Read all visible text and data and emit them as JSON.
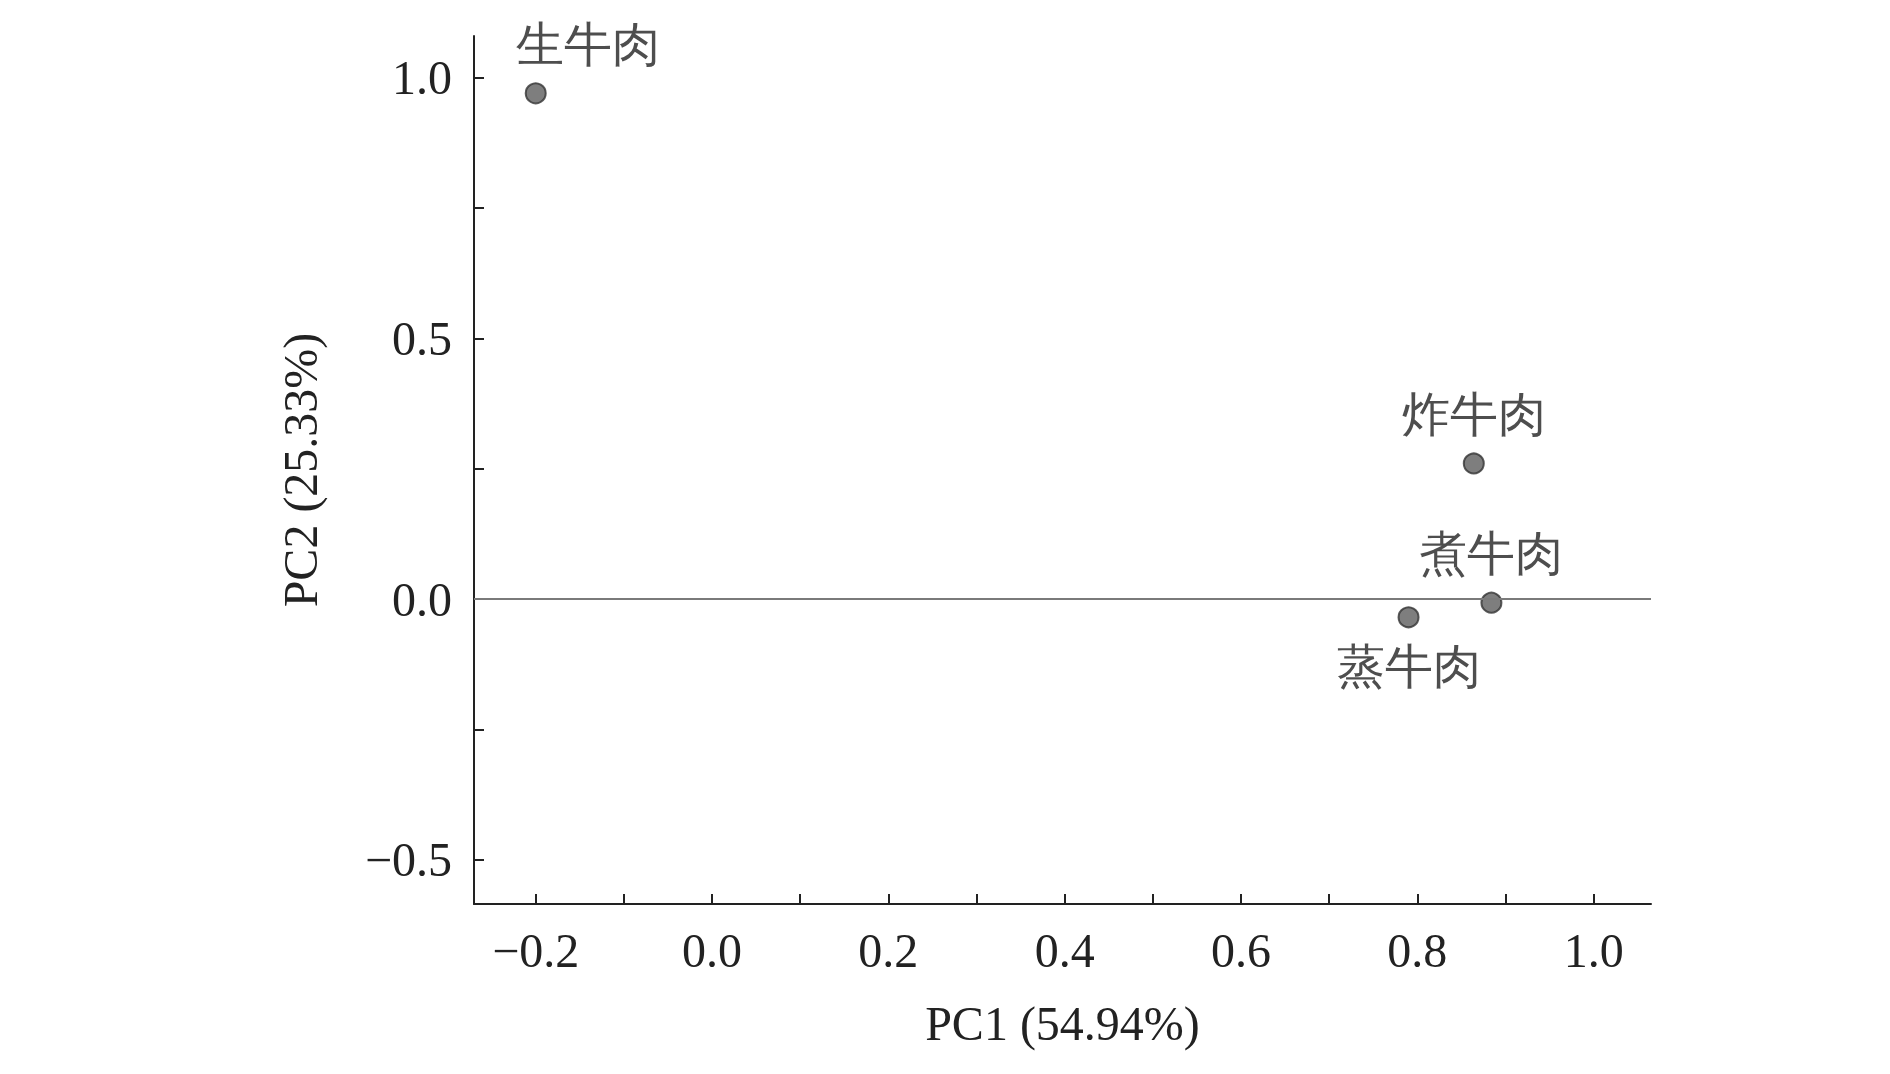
{
  "chart_data": {
    "type": "scatter",
    "xlabel": "PC1 (54.94%)",
    "ylabel": "PC2 (25.33%)",
    "xlim": [
      -0.27,
      1.065
    ],
    "ylim": [
      -0.585,
      1.08
    ],
    "xticks": [
      {
        "value": -0.2,
        "label": "−0.2"
      },
      {
        "value": -0.1,
        "label": null
      },
      {
        "value": 0,
        "label": "0.0"
      },
      {
        "value": 0.1,
        "label": null
      },
      {
        "value": 0.2,
        "label": "0.2"
      },
      {
        "value": 0.3,
        "label": null
      },
      {
        "value": 0.4,
        "label": "0.4"
      },
      {
        "value": 0.5,
        "label": null
      },
      {
        "value": 0.6,
        "label": "0.6"
      },
      {
        "value": 0.7,
        "label": null
      },
      {
        "value": 0.8,
        "label": "0.8"
      },
      {
        "value": 0.9,
        "label": null
      },
      {
        "value": 1,
        "label": "1.0"
      }
    ],
    "yticks": [
      {
        "value": -0.5,
        "label": "−0.5"
      },
      {
        "value": -0.25,
        "label": null
      },
      {
        "value": 0,
        "label": "0.0"
      },
      {
        "value": 0.25,
        "label": null
      },
      {
        "value": 0.5,
        "label": "0.5"
      },
      {
        "value": 0.75,
        "label": null
      },
      {
        "value": 1,
        "label": "1.0"
      }
    ],
    "series": [
      {
        "name": "生牛肉",
        "color": "#5e5e5e",
        "x": [
          -0.2
        ],
        "values": [
          0.97
        ]
      },
      {
        "name": "炸牛肉",
        "color": "#5e5e5e",
        "x": [
          0.864
        ],
        "values": [
          0.26
        ]
      },
      {
        "name": "煮牛肉",
        "color": "#5e5e5e",
        "x": [
          0.884
        ],
        "values": [
          -0.007
        ]
      },
      {
        "name": "蒸牛肉",
        "color": "#5e5e5e",
        "x": [
          0.79
        ],
        "values": [
          -0.035
        ]
      }
    ],
    "ref_lines": [
      {
        "axis": "y",
        "value": 0,
        "color": "#7a7a7a"
      }
    ],
    "marker": "circle",
    "grid": false,
    "legend": false
  }
}
